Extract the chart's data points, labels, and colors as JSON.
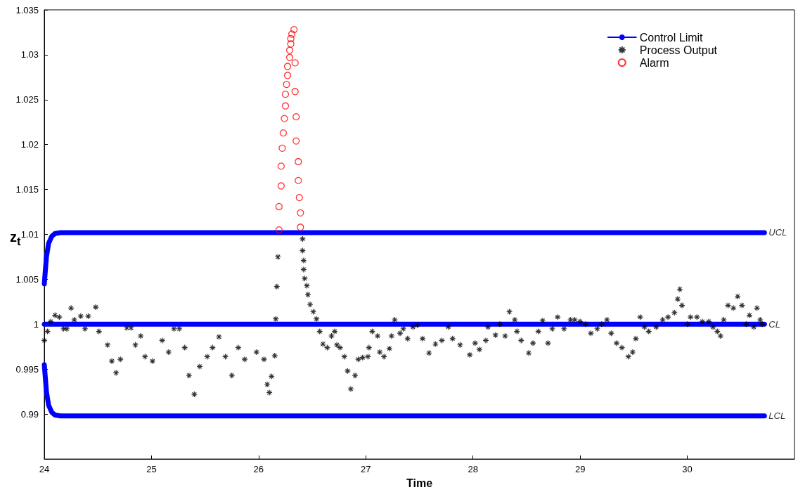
{
  "chart_data": {
    "type": "scatter",
    "xlabel": "Time",
    "ylabel": "z$_{t}$",
    "xlim": [
      24,
      31
    ],
    "xticks": [
      24,
      25,
      26,
      27,
      28,
      29,
      30
    ],
    "ylim": [
      0.985,
      1.035
    ],
    "yticks": [
      0.99,
      0.995,
      1,
      1.005,
      1.01,
      1.015,
      1.02,
      1.025,
      1.03,
      1.035
    ],
    "grid": false,
    "legend": "top right",
    "annotations": [
      "UCL",
      "CL",
      "LCL"
    ],
    "series": [
      {
        "name": "Control Limit",
        "type": "line",
        "color": "#0000ff",
        "marker": "none",
        "line_style": "solid",
        "x": [
          24,
          24.02,
          24.04,
          24.07,
          24.1,
          24.15,
          30.72
        ],
        "values": [
          1.0045,
          1.0075,
          1.009,
          1.0098,
          1.0101,
          1.0102,
          1.0102
        ]
      },
      {
        "type": "line",
        "color": "#0000ff",
        "marker": "none",
        "line_style": "solid",
        "x": [
          24,
          30.72
        ],
        "values": [
          1.0,
          1.0
        ]
      },
      {
        "type": "line",
        "color": "#0000ff",
        "marker": "none",
        "line_style": "solid",
        "x": [
          24,
          24.02,
          24.04,
          24.07,
          24.1,
          24.15,
          30.72
        ],
        "values": [
          0.9955,
          0.9925,
          0.991,
          0.9902,
          0.9899,
          0.9898,
          0.9898
        ]
      },
      {
        "name": "Process Output",
        "color": "#000000",
        "marker": "cross",
        "x": [
          24.0,
          24.03,
          24.06,
          24.1,
          24.14,
          24.18,
          24.21,
          24.25,
          24.28,
          24.34,
          24.38,
          24.41,
          24.48,
          24.51,
          24.59,
          24.63,
          24.67,
          24.71,
          24.77,
          24.81,
          24.85,
          24.9,
          24.94,
          25.01,
          25.1,
          25.16,
          25.21,
          25.26,
          25.31,
          25.35,
          25.4,
          25.45,
          25.52,
          25.57,
          25.63,
          25.69,
          25.75,
          25.81,
          25.87,
          25.98,
          26.05,
          26.08,
          26.1,
          26.12,
          26.15,
          26.16,
          26.17,
          26.18,
          26.41,
          26.41,
          26.42,
          26.42,
          26.43,
          26.45,
          26.46,
          26.48,
          26.51,
          26.54,
          26.57,
          26.6,
          26.64,
          26.68,
          26.71,
          26.73,
          26.76,
          26.8,
          26.83,
          26.86,
          26.9,
          26.93,
          26.97,
          27.02,
          27.03,
          27.06,
          27.11,
          27.13,
          27.17,
          27.22,
          27.24,
          27.27,
          27.32,
          27.35,
          27.39,
          27.44,
          27.48,
          27.53,
          27.59,
          27.65,
          27.71,
          27.77,
          27.81,
          27.88,
          27.97,
          28.02,
          28.06,
          28.12,
          28.14,
          28.21,
          28.25,
          28.3,
          28.34,
          28.39,
          28.41,
          28.45,
          28.52,
          28.56,
          28.61,
          28.65,
          28.7,
          28.74,
          28.79,
          28.85,
          28.91,
          28.95,
          29.0,
          29.05,
          29.1,
          29.16,
          29.2,
          29.25,
          29.29,
          29.34,
          29.39,
          29.45,
          29.49,
          29.52,
          29.56,
          29.6,
          29.64,
          29.71,
          29.77,
          29.82,
          29.88,
          29.91,
          29.93,
          29.95,
          30.0,
          30.03,
          30.09,
          30.14,
          30.2,
          30.24,
          30.28,
          30.31,
          30.34,
          30.38,
          30.43,
          30.47,
          30.51,
          30.55,
          30.58,
          30.62,
          30.65,
          30.68,
          30.7
        ],
        "values": [
          0.9982,
          0.9992,
          1.0003,
          1.001,
          1.0008,
          0.9995,
          0.9995,
          1.0018,
          1.0005,
          1.0009,
          0.9995,
          1.0009,
          1.0019,
          0.9992,
          0.9977,
          0.9959,
          0.9946,
          0.9961,
          0.9996,
          0.9996,
          0.9977,
          0.9987,
          0.9964,
          0.9959,
          0.9982,
          0.9969,
          0.9995,
          0.9995,
          0.9974,
          0.9943,
          0.9922,
          0.9953,
          0.9964,
          0.9974,
          0.9986,
          0.9964,
          0.9943,
          0.9974,
          0.9961,
          0.9969,
          0.9961,
          0.9933,
          0.9924,
          0.9942,
          0.9965,
          1.0006,
          1.0042,
          1.0075,
          1.0095,
          1.0082,
          1.0071,
          1.0061,
          1.0051,
          1.0043,
          1.0033,
          1.0022,
          1.0014,
          1.0006,
          0.9992,
          0.9978,
          0.9974,
          0.9987,
          0.9992,
          0.9977,
          0.9974,
          0.9964,
          0.9948,
          0.9928,
          0.9943,
          0.9961,
          0.9963,
          0.9964,
          0.9974,
          0.9992,
          0.9987,
          0.9969,
          0.9964,
          0.9973,
          0.9987,
          1.0005,
          0.999,
          0.9995,
          0.9984,
          0.9997,
          0.9999,
          0.9984,
          0.9968,
          0.9978,
          0.9982,
          0.9997,
          0.9984,
          0.9977,
          0.9966,
          0.9979,
          0.9972,
          0.9982,
          0.9997,
          0.9988,
          1.0,
          0.9987,
          1.0014,
          1.0005,
          0.9992,
          0.9982,
          0.9968,
          0.9979,
          0.9992,
          1.0004,
          0.9979,
          0.9995,
          1.0008,
          0.9995,
          1.0005,
          1.0005,
          1.0003,
          1.0,
          0.999,
          0.9995,
          1.0,
          1.0005,
          0.999,
          0.9979,
          0.9974,
          0.9964,
          0.9969,
          0.9984,
          1.0008,
          0.9997,
          0.9992,
          0.9997,
          1.0005,
          1.0008,
          1.0013,
          1.0028,
          1.0039,
          1.0021,
          1.0,
          1.0008,
          1.0008,
          1.0003,
          1.0003,
          0.9997,
          0.9992,
          0.9987,
          1.0005,
          1.0021,
          1.0018,
          1.0031,
          1.0021,
          1.0,
          1.001,
          0.9997,
          1.0018,
          1.0005,
          1.0
        ]
      },
      {
        "name": "Alarm",
        "color": "#ff0000",
        "marker": "circle",
        "x": [
          26.19,
          26.19,
          26.21,
          26.21,
          26.22,
          26.23,
          26.24,
          26.25,
          26.25,
          26.26,
          26.27,
          26.27,
          26.29,
          26.29,
          26.3,
          26.3,
          26.31,
          26.33,
          26.34,
          26.34,
          26.35,
          26.35,
          26.37,
          26.37,
          26.38,
          26.39,
          26.39
        ],
        "values": [
          1.0105,
          1.0131,
          1.0154,
          1.0176,
          1.0196,
          1.0213,
          1.0229,
          1.0243,
          1.0256,
          1.0267,
          1.0277,
          1.0287,
          1.0297,
          1.0305,
          1.0312,
          1.0318,
          1.0323,
          1.0328,
          1.0291,
          1.0259,
          1.0231,
          1.0204,
          1.0181,
          1.016,
          1.0141,
          1.0124,
          1.0108
        ]
      }
    ]
  }
}
